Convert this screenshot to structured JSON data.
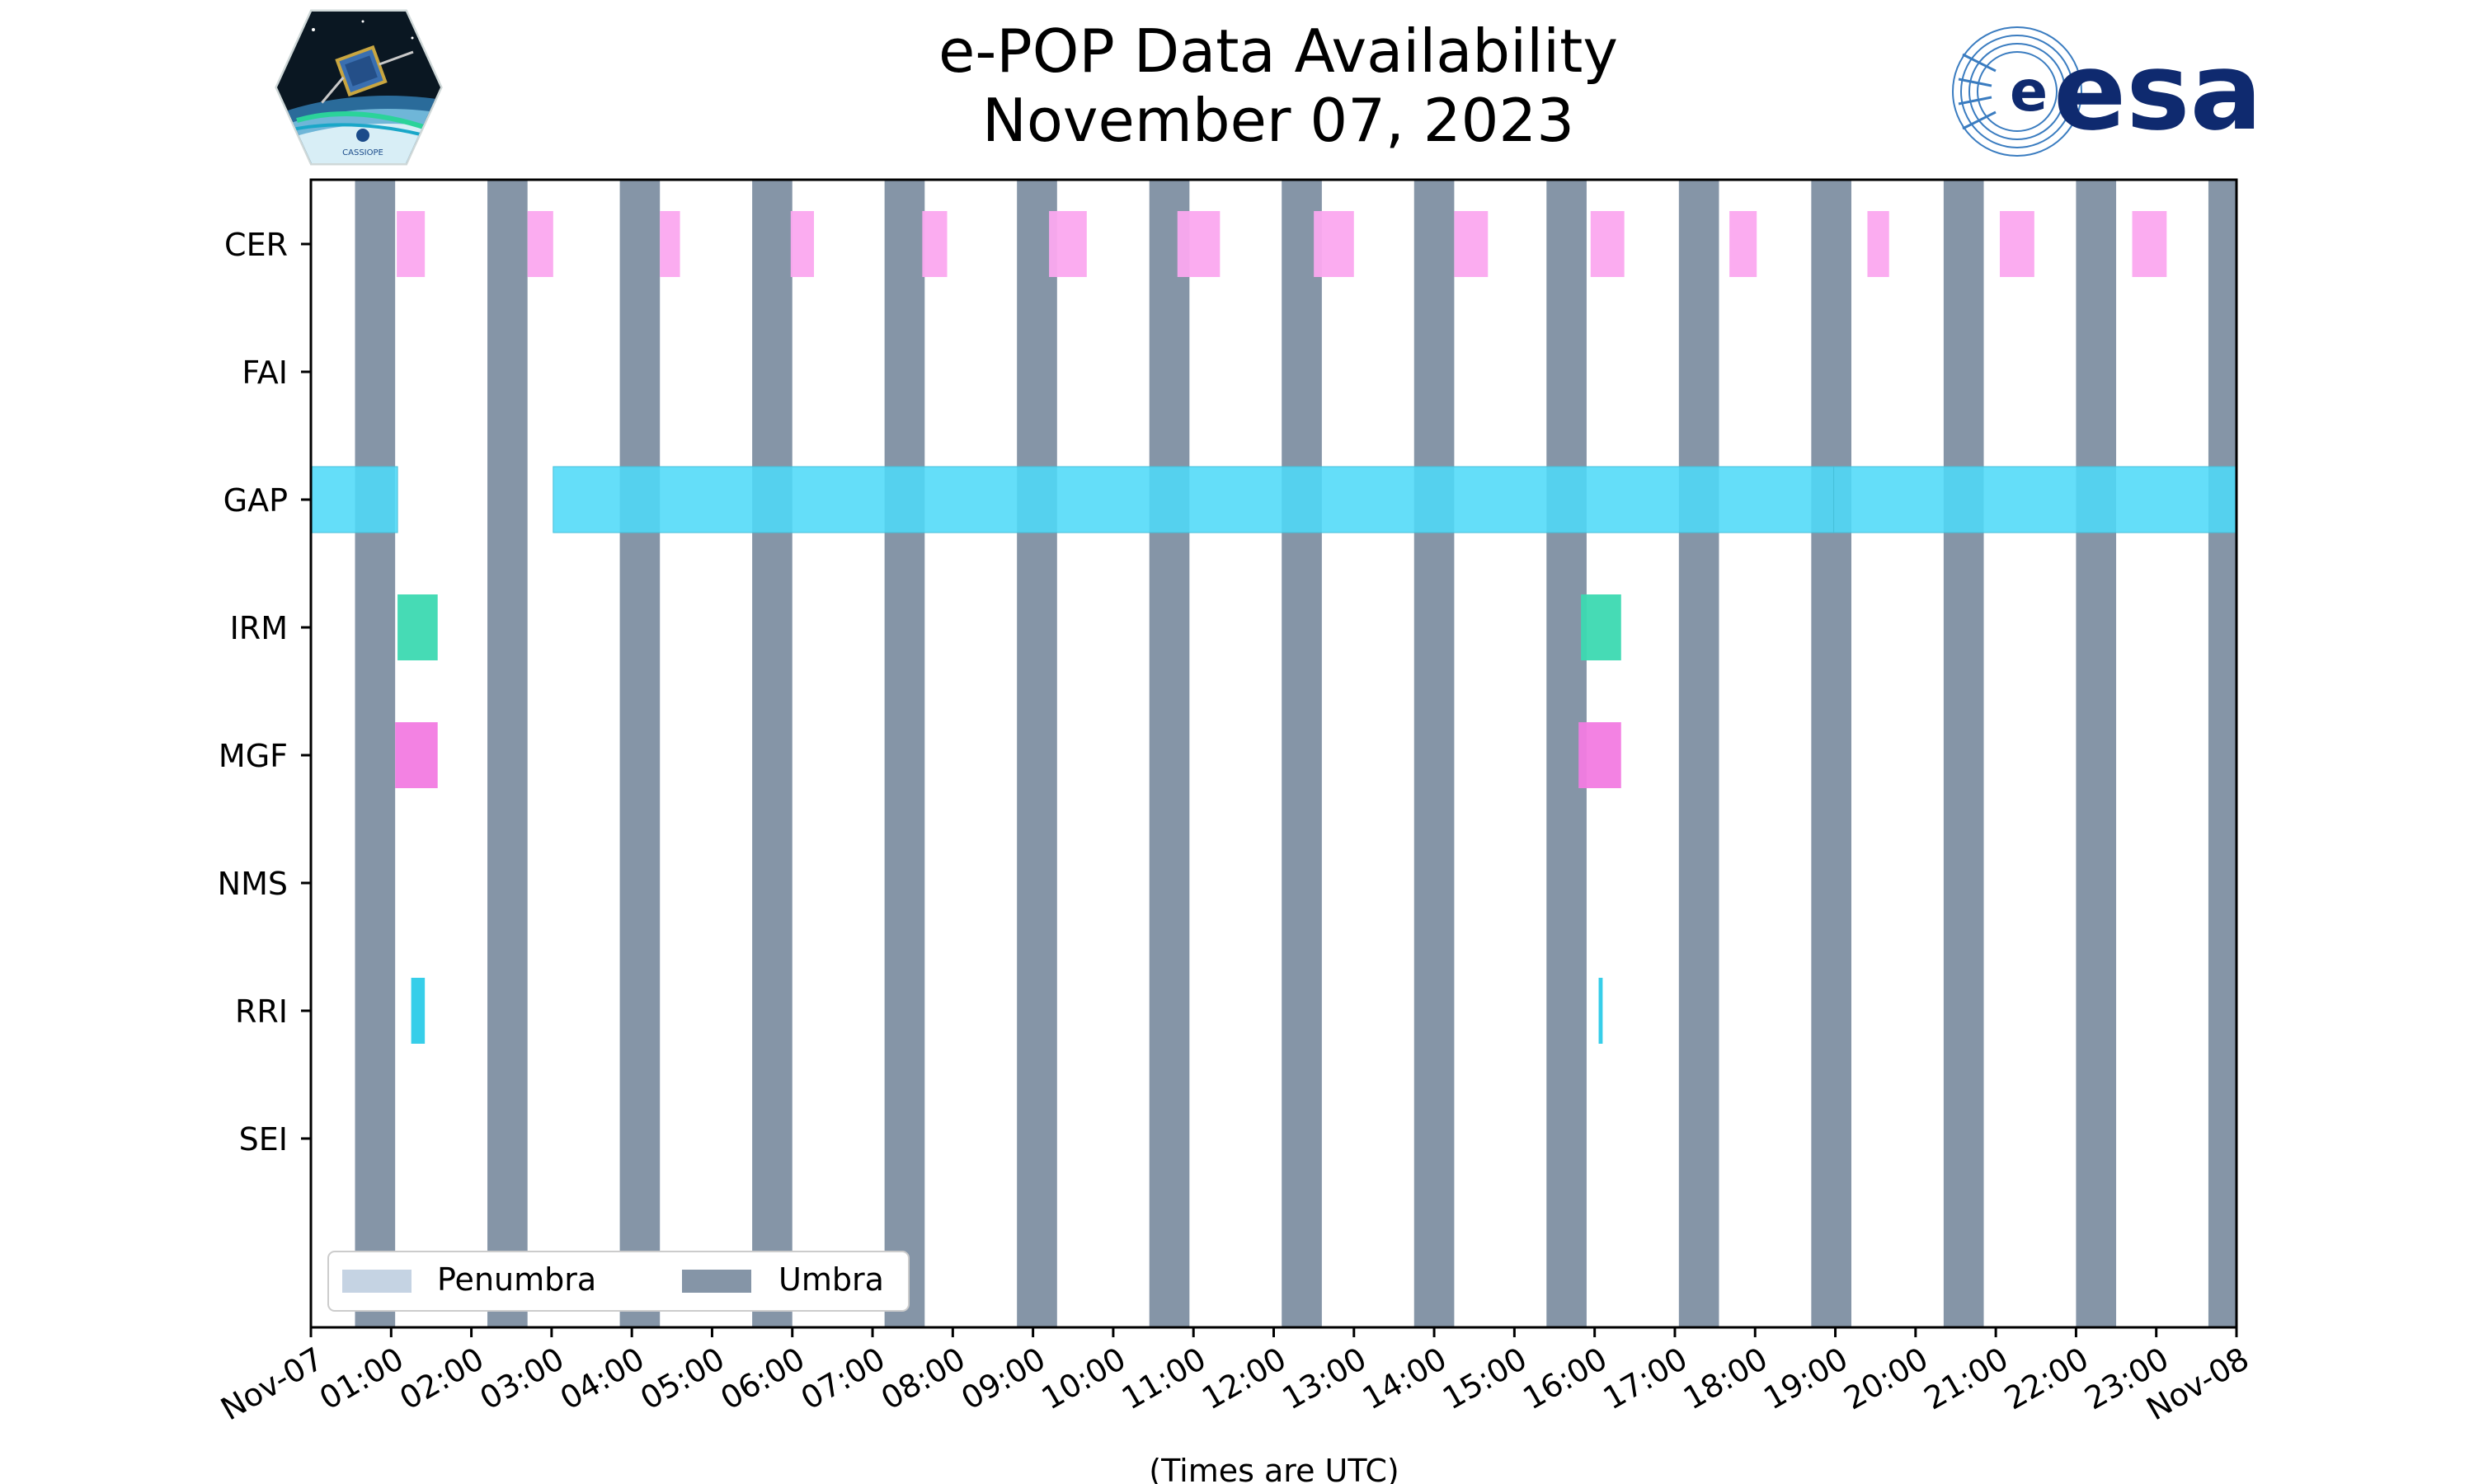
{
  "chart_data": {
    "type": "timeline",
    "title": "e-POP Data Availability",
    "subtitle": "November 07, 2023",
    "xlabel": "(Times are UTC)",
    "x_range_hours": [
      0,
      24
    ],
    "x_tick_labels": [
      "Nov-07",
      "01:00",
      "02:00",
      "03:00",
      "04:00",
      "05:00",
      "06:00",
      "07:00",
      "08:00",
      "09:00",
      "10:00",
      "11:00",
      "12:00",
      "13:00",
      "14:00",
      "15:00",
      "16:00",
      "17:00",
      "18:00",
      "19:00",
      "20:00",
      "21:00",
      "22:00",
      "23:00",
      "Nov-08"
    ],
    "rows": [
      "CER",
      "FAI",
      "GAP",
      "IRM",
      "MGF",
      "NMS",
      "RRI",
      "SEI"
    ],
    "umbra": [
      [
        0.55,
        1.05
      ],
      [
        2.2,
        2.7
      ],
      [
        3.85,
        4.35
      ],
      [
        5.5,
        6.0
      ],
      [
        7.15,
        7.65
      ],
      [
        8.8,
        9.3
      ],
      [
        10.45,
        10.95
      ],
      [
        12.1,
        12.6
      ],
      [
        13.75,
        14.25
      ],
      [
        15.4,
        15.9
      ],
      [
        17.05,
        17.55
      ],
      [
        18.7,
        19.2
      ],
      [
        20.35,
        20.85
      ],
      [
        22.0,
        22.5
      ],
      [
        23.65,
        24.0
      ]
    ],
    "series": [
      {
        "name": "CER",
        "color": "#fba8ef",
        "intervals": [
          [
            1.07,
            1.42
          ],
          [
            2.7,
            3.02
          ],
          [
            4.35,
            4.6
          ],
          [
            5.98,
            6.27
          ],
          [
            7.62,
            7.93
          ],
          [
            9.2,
            9.67
          ],
          [
            10.8,
            11.33
          ],
          [
            12.5,
            13.0
          ],
          [
            14.25,
            14.67
          ],
          [
            15.95,
            16.37
          ],
          [
            17.68,
            18.02
          ],
          [
            19.4,
            19.67
          ],
          [
            21.05,
            21.48
          ],
          [
            22.7,
            23.13
          ]
        ]
      },
      {
        "name": "FAI",
        "color": "#fba8ef",
        "intervals": []
      },
      {
        "name": "GAP",
        "color": "#4fd9f8",
        "intervals": [
          [
            0.0,
            1.08
          ],
          [
            3.02,
            18.98
          ],
          [
            18.98,
            24.0
          ]
        ]
      },
      {
        "name": "IRM",
        "color": "#3cd9b1",
        "intervals": [
          [
            1.08,
            1.58
          ],
          [
            15.83,
            16.33
          ]
        ]
      },
      {
        "name": "MGF",
        "color": "#f27be1",
        "intervals": [
          [
            1.05,
            1.58
          ],
          [
            15.8,
            16.33
          ]
        ]
      },
      {
        "name": "NMS",
        "color": "#f27be1",
        "intervals": []
      },
      {
        "name": "RRI",
        "color": "#2ccbe8",
        "intervals": [
          [
            1.25,
            1.42
          ],
          [
            16.05,
            16.1
          ]
        ]
      },
      {
        "name": "SEI",
        "color": "#2ccbe8",
        "intervals": []
      }
    ],
    "umbra_color": "#8595a7",
    "penumbra_color": "#c5d3e3",
    "legend": {
      "position": "bottom-left",
      "entries": [
        {
          "label": "Penumbra",
          "color": "#c5d3e3"
        },
        {
          "label": "Umbra",
          "color": "#8595a7"
        }
      ]
    }
  },
  "logos": {
    "left_text": "CASSIOPE",
    "right_text": "esa",
    "esa_color": "#0f2a6f"
  }
}
